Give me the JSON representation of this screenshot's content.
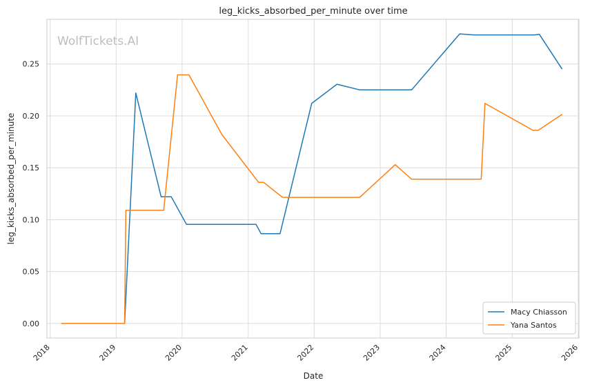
{
  "chart_data": {
    "type": "line",
    "title": "leg_kicks_absorbed_per_minute over time",
    "xlabel": "Date",
    "ylabel": "leg_kicks_absorbed_per_minute",
    "watermark": "WolfTickets.AI",
    "x_tick_labels": [
      "2018",
      "2019",
      "2020",
      "2021",
      "2022",
      "2023",
      "2024",
      "2025",
      "2026"
    ],
    "y_tick_labels": [
      "0.00",
      "0.05",
      "0.10",
      "0.15",
      "0.20",
      "0.25"
    ],
    "y_ticks": [
      0,
      0.05,
      0.1,
      0.15,
      0.2,
      0.25
    ],
    "xlim": [
      "2017-12-14",
      "2026-01-05"
    ],
    "ylim": [
      -0.014,
      0.293
    ],
    "grid": true,
    "legend_position": "lower-right",
    "series": [
      {
        "name": "Macy Chiasson",
        "color": "#1f77b4",
        "points": [
          [
            "2019-02-17",
            0.0
          ],
          [
            "2019-04-20",
            0.222
          ],
          [
            "2019-09-07",
            0.122
          ],
          [
            "2019-11-02",
            0.122
          ],
          [
            "2020-01-25",
            0.0955
          ],
          [
            "2021-02-13",
            0.0955
          ],
          [
            "2021-03-13",
            0.0865
          ],
          [
            "2021-06-26",
            0.0865
          ],
          [
            "2021-12-18",
            0.212
          ],
          [
            "2022-05-07",
            0.2305
          ],
          [
            "2022-09-10",
            0.225
          ],
          [
            "2023-06-24",
            0.225
          ],
          [
            "2024-03-16",
            0.279
          ],
          [
            "2024-06-01",
            0.278
          ],
          [
            "2025-05-03",
            0.278
          ],
          [
            "2025-05-31",
            0.2785
          ],
          [
            "2025-10-04",
            0.245
          ]
        ]
      },
      {
        "name": "Yana Santos",
        "color": "#ff7f0e",
        "points": [
          [
            "2018-03-03",
            0.0
          ],
          [
            "2019-02-17",
            0.0
          ],
          [
            "2019-02-24",
            0.109
          ],
          [
            "2019-09-21",
            0.109
          ],
          [
            "2019-12-07",
            0.2395
          ],
          [
            "2020-02-08",
            0.2395
          ],
          [
            "2020-08-08",
            0.182
          ],
          [
            "2021-02-27",
            0.136
          ],
          [
            "2021-03-27",
            0.136
          ],
          [
            "2021-07-10",
            0.1215
          ],
          [
            "2022-09-10",
            0.1215
          ],
          [
            "2023-03-25",
            0.153
          ],
          [
            "2023-06-24",
            0.139
          ],
          [
            "2024-07-13",
            0.139
          ],
          [
            "2024-08-03",
            0.212
          ],
          [
            "2025-04-26",
            0.186
          ],
          [
            "2025-05-24",
            0.186
          ],
          [
            "2025-10-04",
            0.2015
          ]
        ]
      }
    ]
  }
}
